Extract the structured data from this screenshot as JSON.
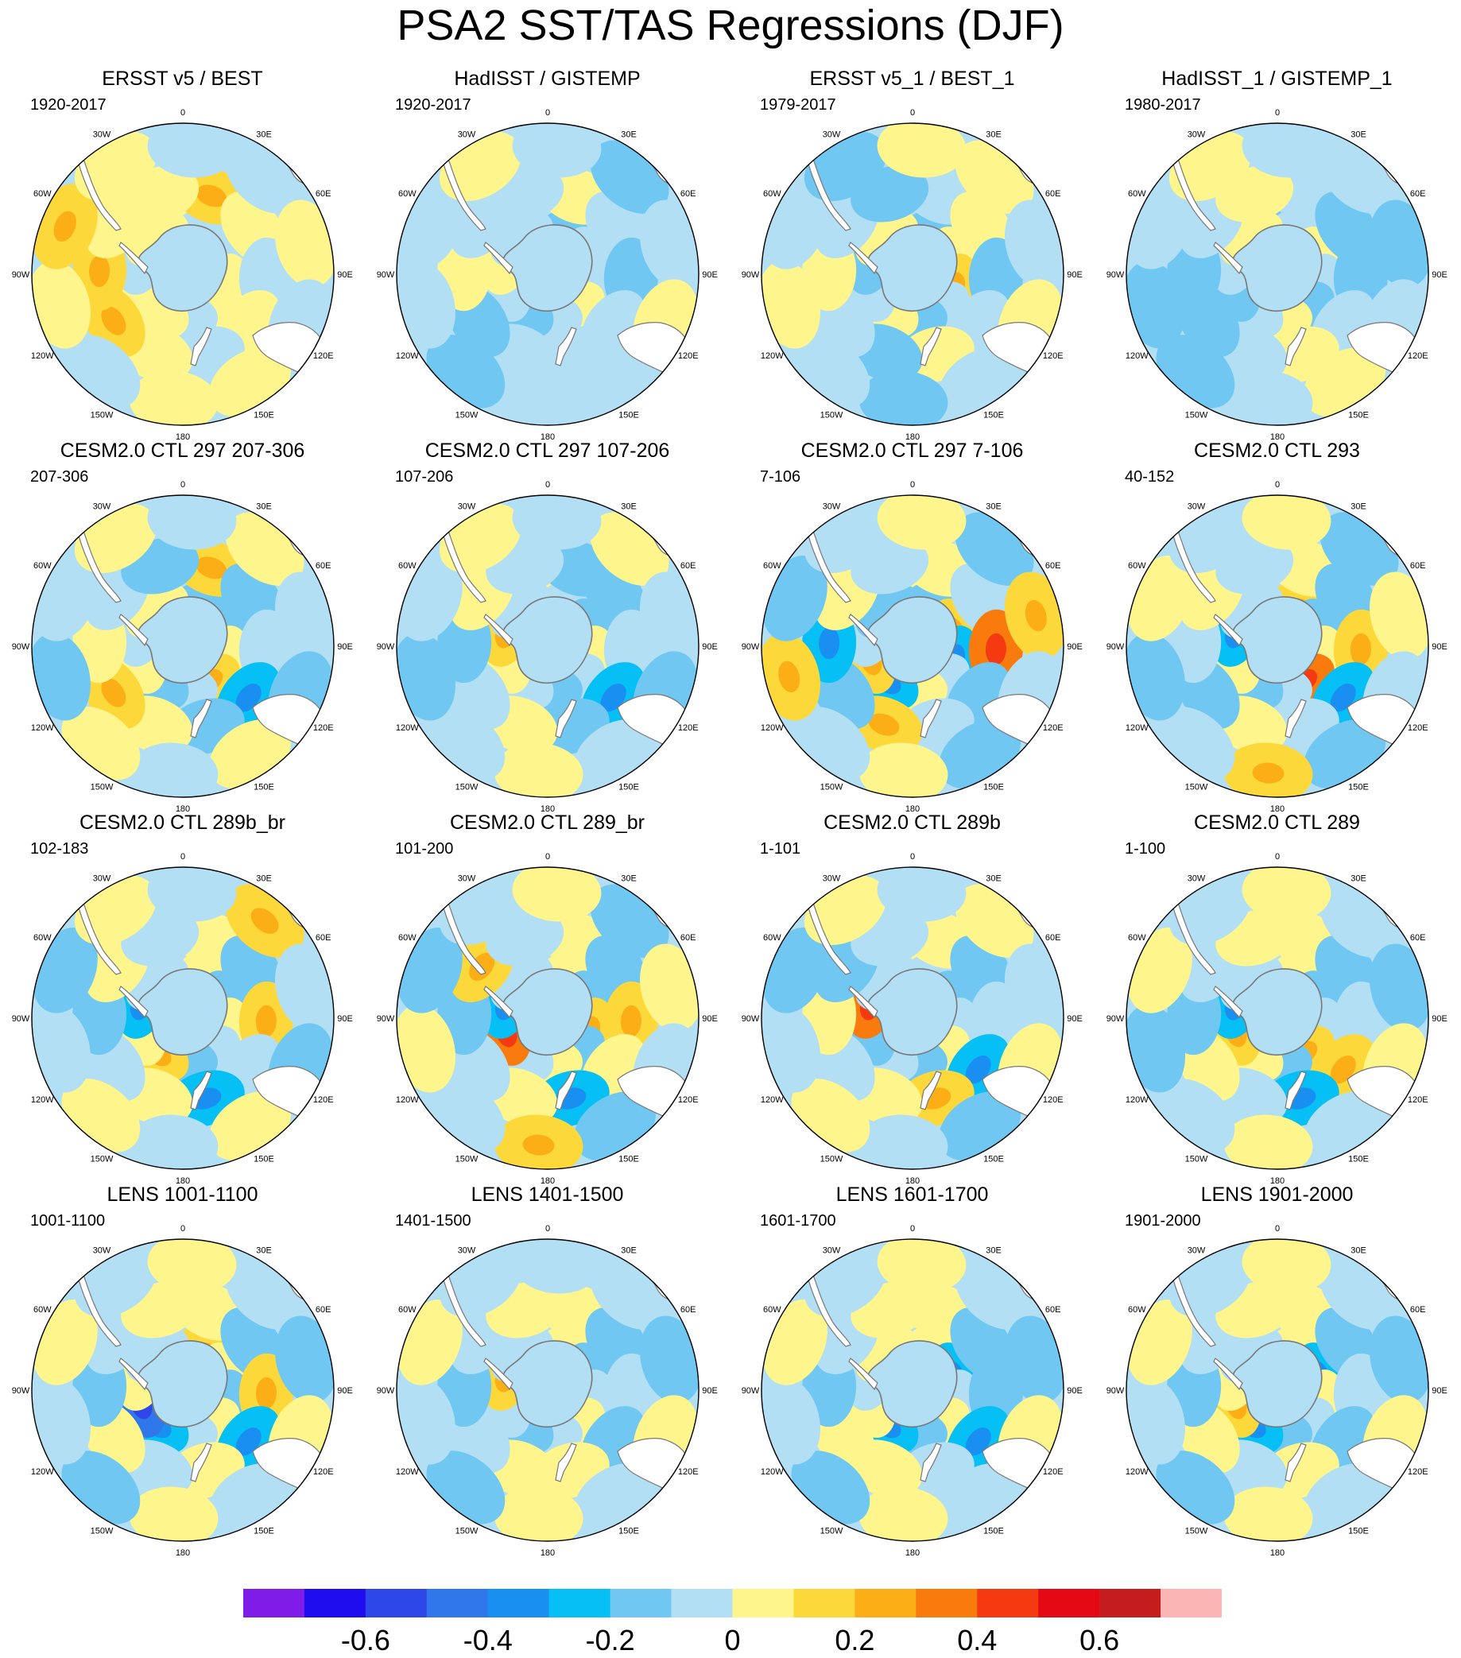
{
  "title": "PSA2 SST/TAS Regressions (DJF)",
  "longitude_labels": [
    "0",
    "30E",
    "60E",
    "90E",
    "120E",
    "150E",
    "180",
    "150W",
    "120W",
    "90W",
    "60W",
    "30W"
  ],
  "panels": [
    {
      "title": "ERSST v5 / BEST",
      "period": "1920-2017",
      "field": [
        1,
        0,
        0,
        1,
        1,
        0,
        1,
        1,
        0,
        1,
        2,
        1,
        0,
        1,
        0,
        1,
        2,
        2,
        1,
        1,
        0,
        1,
        0,
        1,
        1,
        0,
        1,
        2,
        1,
        0
      ]
    },
    {
      "title": "HadISST / GISTEMP",
      "period": "1920-2017",
      "field": [
        0,
        -1,
        0,
        0,
        1,
        0,
        -1,
        0,
        1,
        0,
        1,
        0,
        -1,
        0,
        0,
        0,
        -1,
        1,
        0,
        0,
        -1,
        0,
        1,
        0,
        0,
        -1,
        0,
        0,
        1,
        0
      ]
    },
    {
      "title": "ERSST v5_1 / BEST_1",
      "period": "1979-2017",
      "field": [
        0,
        -1,
        1,
        2,
        0,
        -1,
        1,
        0,
        -1,
        1,
        0,
        1,
        -1,
        0,
        1,
        -1,
        0,
        1,
        0,
        -1,
        1,
        0,
        1,
        0,
        -1,
        0,
        1,
        0,
        -1,
        1
      ]
    },
    {
      "title": "HadISST_1 / GISTEMP_1",
      "period": "1980-2017",
      "field": [
        -1,
        0,
        1,
        0,
        -1,
        1,
        0,
        -1,
        0,
        1,
        0,
        -1,
        -1,
        0,
        1,
        0,
        -1,
        -1,
        0,
        1,
        0,
        -1,
        0,
        1,
        0,
        -1,
        -1,
        0,
        1,
        0
      ]
    },
    {
      "title": "CESM2.0 CTL 297 207-306",
      "period": "207-306",
      "field": [
        0,
        -1,
        -1,
        1,
        2,
        0,
        -1,
        1,
        0,
        1,
        2,
        -1,
        0,
        -2,
        -1,
        1,
        2,
        1,
        0,
        -1,
        1,
        0,
        -1,
        1,
        0,
        1,
        -1,
        0,
        1,
        0
      ]
    },
    {
      "title": "CESM2.0 CTL 297 107-206",
      "period": "107-206",
      "field": [
        1,
        0,
        -1,
        1,
        0,
        -1,
        0,
        1,
        2,
        0,
        -1,
        -1,
        0,
        -2,
        -1,
        1,
        0,
        -1,
        1,
        0,
        1,
        0,
        -1,
        0,
        1,
        0,
        -1,
        0,
        1,
        0
      ]
    },
    {
      "title": "CESM2.0 CTL 297 7-106",
      "period": "7-106",
      "field": [
        1,
        -1,
        2,
        -2,
        0,
        1,
        -2,
        2,
        0,
        -1,
        1,
        0,
        3,
        -1,
        0,
        2,
        -1,
        -2,
        1,
        0,
        -1,
        2,
        0,
        -1,
        1,
        0,
        2,
        -1,
        0,
        1
      ]
    },
    {
      "title": "CESM2.0 CTL 293",
      "period": "40-152",
      "field": [
        0,
        2,
        -1,
        1,
        3,
        0,
        -1,
        1,
        -2,
        0,
        1,
        -1,
        2,
        -2,
        0,
        1,
        -1,
        0,
        1,
        0,
        -1,
        1,
        0,
        -1,
        2,
        0,
        -1,
        1,
        0,
        1
      ]
    },
    {
      "title": "CESM2.0 CTL 289b_br",
      "period": "102-183",
      "field": [
        0,
        1,
        -1,
        1,
        0,
        -1,
        2,
        1,
        -2,
        0,
        1,
        -1,
        2,
        0,
        -2,
        1,
        0,
        -1,
        1,
        0,
        2,
        0,
        -1,
        1,
        0,
        1,
        0,
        -1,
        1,
        0
      ]
    },
    {
      "title": "CESM2.0 CTL 289_br",
      "period": "101-200",
      "field": [
        0,
        1,
        -1,
        2,
        -1,
        1,
        0,
        3,
        -2,
        0,
        1,
        -1,
        2,
        1,
        -2,
        1,
        0,
        -1,
        2,
        0,
        -1,
        1,
        0,
        -1,
        2,
        0,
        1,
        -1,
        0,
        1
      ]
    },
    {
      "title": "CESM2.0 CTL 289b",
      "period": "1-101",
      "field": [
        1,
        0,
        -1,
        0,
        1,
        -1,
        0,
        -1,
        3,
        0,
        1,
        -1,
        0,
        -2,
        2,
        1,
        0,
        1,
        -1,
        0,
        1,
        0,
        1,
        -1,
        0,
        1,
        0,
        -1,
        1,
        0
      ]
    },
    {
      "title": "CESM2.0 CTL 289",
      "period": "1-100",
      "field": [
        0,
        1,
        -1,
        0,
        2,
        -1,
        1,
        2,
        -2,
        0,
        1,
        -1,
        0,
        2,
        -2,
        0,
        1,
        -1,
        0,
        1,
        0,
        -1,
        1,
        0,
        1,
        0,
        -1,
        1,
        0,
        1
      ]
    },
    {
      "title": "LENS 1001-1100",
      "period": "1001-1100",
      "field": [
        0,
        2,
        1,
        -1,
        1,
        0,
        -2,
        -3,
        1,
        0,
        1,
        -1,
        2,
        -2,
        1,
        0,
        1,
        -1,
        0,
        1,
        0,
        -1,
        1,
        0,
        1,
        -1,
        0,
        1,
        0,
        1
      ]
    },
    {
      "title": "LENS 1401-1500",
      "period": "1401-1500",
      "field": [
        0,
        1,
        -1,
        0,
        1,
        0,
        -1,
        0,
        2,
        0,
        1,
        -1,
        0,
        -1,
        1,
        1,
        0,
        -1,
        0,
        1,
        0,
        -1,
        1,
        0,
        1,
        -1,
        0,
        1,
        0,
        0
      ]
    },
    {
      "title": "LENS 1601-1700",
      "period": "1601-1700",
      "field": [
        0,
        1,
        -2,
        0,
        1,
        -1,
        -2,
        1,
        0,
        1,
        1,
        -1,
        -1,
        -2,
        0,
        1,
        1,
        -1,
        0,
        1,
        0,
        -1,
        1,
        0,
        1,
        -1,
        0,
        1,
        0,
        1
      ]
    },
    {
      "title": "LENS 1901-2000",
      "period": "1901-2000",
      "field": [
        0,
        1,
        -2,
        1,
        0,
        -1,
        -2,
        2,
        1,
        0,
        1,
        -1,
        0,
        -1,
        1,
        0,
        1,
        -1,
        0,
        1,
        0,
        -1,
        1,
        0,
        1,
        -1,
        0,
        1,
        0,
        1
      ]
    }
  ],
  "colorbar": {
    "colors": [
      "#7f1ce8",
      "#1f0df0",
      "#2e47e8",
      "#2f77ea",
      "#1a8ff2",
      "#06bff5",
      "#70c8f2",
      "#b3dff4",
      "#fef68c",
      "#fdd83a",
      "#fbae15",
      "#f97b0e",
      "#f53a12",
      "#e50915",
      "#c51d1e",
      "#fab5b4"
    ],
    "labels": [
      "-0.6",
      "-0.4",
      "-0.2",
      "0",
      "0.2",
      "0.4",
      "0.6"
    ]
  }
}
